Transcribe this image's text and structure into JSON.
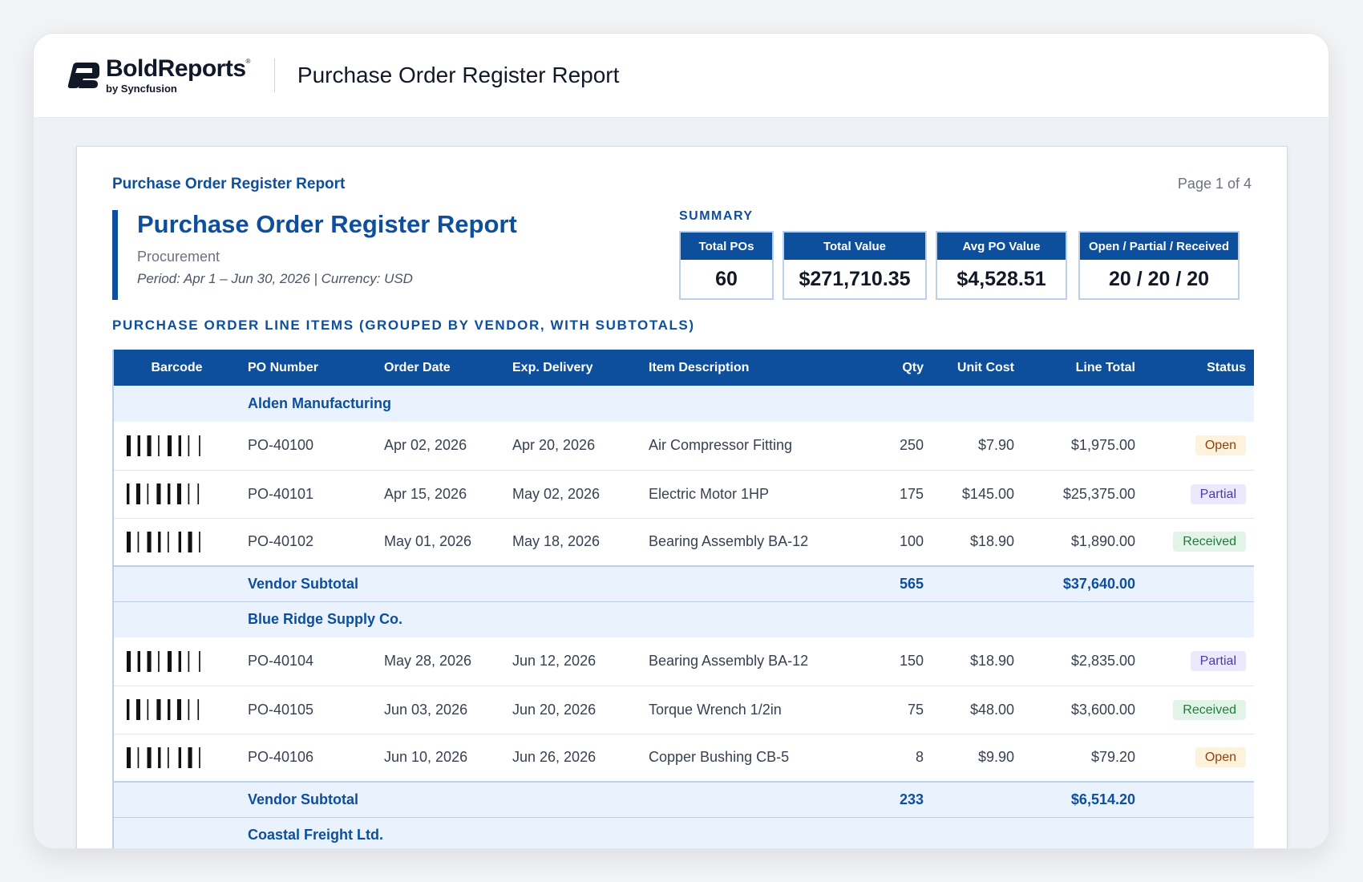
{
  "app": {
    "logo_name": "BoldReports",
    "logo_registered": "®",
    "logo_sub": "by Syncfusion",
    "header_title": "Purchase Order Register Report"
  },
  "page": {
    "top_label": "Purchase Order Register Report",
    "page_number": "Page 1 of 4",
    "title": "Purchase Order Register Report",
    "department": "Procurement",
    "period": "Period: Apr 1 – Jun 30, 2026  |  Currency: USD"
  },
  "summary": {
    "label": "SUMMARY",
    "kpis": [
      {
        "label": "Total POs",
        "value": "60"
      },
      {
        "label": "Total Value",
        "value": "$271,710.35"
      },
      {
        "label": "Avg PO Value",
        "value": "$4,528.51"
      },
      {
        "label": "Open / Partial / Received",
        "value": "20 / 20 / 20"
      }
    ]
  },
  "section_title": "PURCHASE ORDER LINE ITEMS (GROUPED BY VENDOR, WITH SUBTOTALS)",
  "table": {
    "columns": [
      "Barcode",
      "PO Number",
      "Order Date",
      "Exp. Delivery",
      "Item Description",
      "Qty",
      "Unit Cost",
      "Line Total",
      "Status"
    ],
    "subtotal_label": "Vendor Subtotal",
    "groups": [
      {
        "vendor": "Alden Manufacturing",
        "rows": [
          {
            "po": "PO-40100",
            "order_date": "Apr 02, 2026",
            "delivery": "Apr 20, 2026",
            "item": "Air Compressor Fitting",
            "qty": "250",
            "unit_cost": "$7.90",
            "line_total": "$1,975.00",
            "status": "Open"
          },
          {
            "po": "PO-40101",
            "order_date": "Apr 15, 2026",
            "delivery": "May 02, 2026",
            "item": "Electric Motor 1HP",
            "qty": "175",
            "unit_cost": "$145.00",
            "line_total": "$25,375.00",
            "status": "Partial"
          },
          {
            "po": "PO-40102",
            "order_date": "May 01, 2026",
            "delivery": "May 18, 2026",
            "item": "Bearing Assembly BA-12",
            "qty": "100",
            "unit_cost": "$18.90",
            "line_total": "$1,890.00",
            "status": "Received"
          }
        ],
        "subtotal_qty": "565",
        "subtotal_total": "$37,640.00"
      },
      {
        "vendor": "Blue Ridge Supply Co.",
        "rows": [
          {
            "po": "PO-40104",
            "order_date": "May 28, 2026",
            "delivery": "Jun 12, 2026",
            "item": "Bearing Assembly BA-12",
            "qty": "150",
            "unit_cost": "$18.90",
            "line_total": "$2,835.00",
            "status": "Partial"
          },
          {
            "po": "PO-40105",
            "order_date": "Jun 03, 2026",
            "delivery": "Jun 20, 2026",
            "item": "Torque Wrench 1/2in",
            "qty": "75",
            "unit_cost": "$48.00",
            "line_total": "$3,600.00",
            "status": "Received"
          },
          {
            "po": "PO-40106",
            "order_date": "Jun 10, 2026",
            "delivery": "Jun 26, 2026",
            "item": "Copper Bushing CB-5",
            "qty": "8",
            "unit_cost": "$9.90",
            "line_total": "$79.20",
            "status": "Open"
          }
        ],
        "subtotal_qty": "233",
        "subtotal_total": "$6,514.20"
      },
      {
        "vendor": "Coastal Freight Ltd.",
        "rows": []
      }
    ]
  },
  "status_colors": {
    "Open": {
      "bg": "#fdf3dc",
      "fg": "#92400e"
    },
    "Partial": {
      "bg": "#ebe9fb",
      "fg": "#4c3aa8"
    },
    "Received": {
      "bg": "#e2f4e7",
      "fg": "#1e7d3c"
    }
  },
  "brand_color": "#0d4f9c"
}
